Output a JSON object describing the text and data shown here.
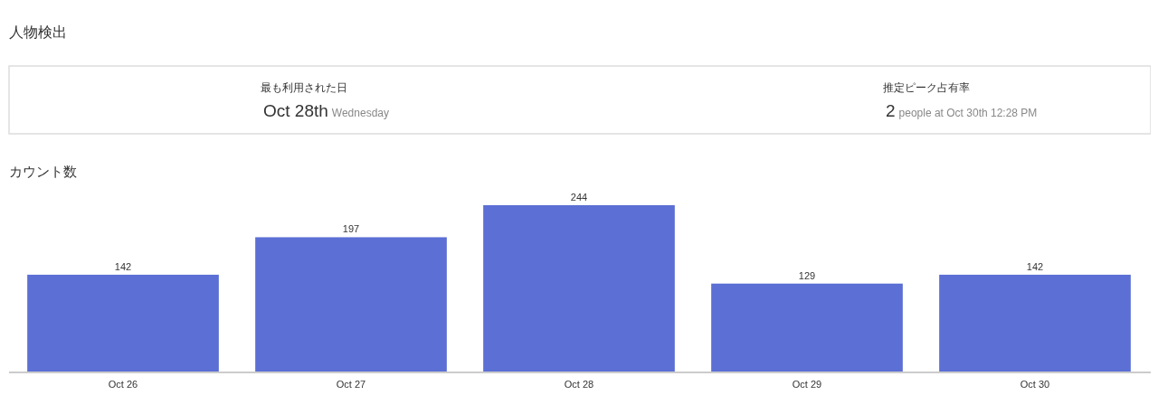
{
  "chart_data": [
    {
      "type": "other",
      "title": "人物検出",
      "annotations": [
        "最も利用された日",
        "Oct 28th",
        "Wednesday",
        "推定ピーク占有率",
        "2",
        "people at Oct 30th 12:28 PM"
      ]
    },
    {
      "type": "bar",
      "title": "カウント数",
      "categories": [
        "Oct 26",
        "Oct 27",
        "Oct 28",
        "Oct 29",
        "Oct 30"
      ],
      "values": [
        142,
        197,
        244,
        129,
        142
      ],
      "color": "#5b6fd4",
      "data_labels": true
    }
  ]
}
